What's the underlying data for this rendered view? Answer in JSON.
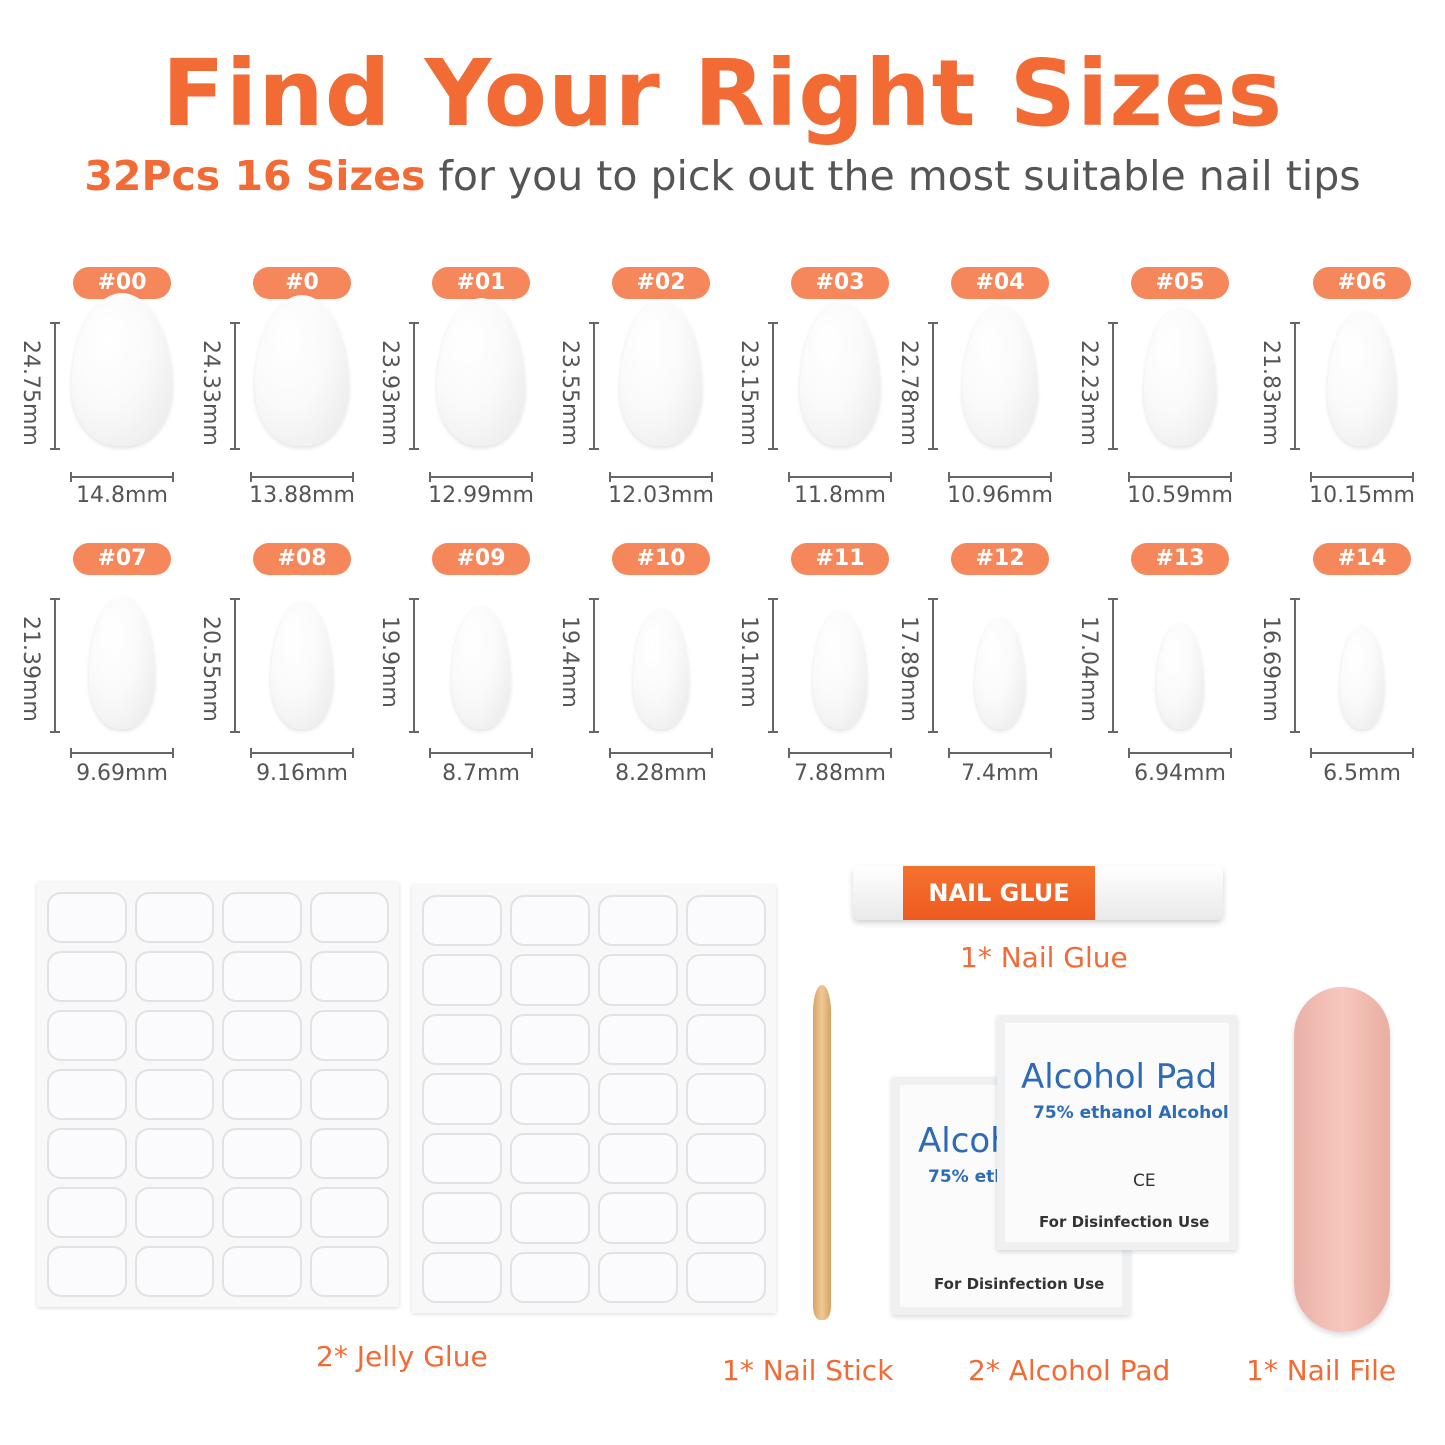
{
  "title": "Find Your Right Sizes",
  "subtitle": {
    "highlight": "32Pcs 16 Sizes",
    "rest": " for you to pick out the most suitable nail tips"
  },
  "accent_color": "#f26a34",
  "sizes": [
    {
      "label": "#00",
      "length": "24.75mm",
      "width": "14.8mm"
    },
    {
      "label": "#0",
      "length": "24.33mm",
      "width": "13.88mm"
    },
    {
      "label": "#01",
      "length": "23.93mm",
      "width": "12.99mm"
    },
    {
      "label": "#02",
      "length": "23.55mm",
      "width": "12.03mm"
    },
    {
      "label": "#03",
      "length": "23.15mm",
      "width": "11.8mm"
    },
    {
      "label": "#04",
      "length": "22.78mm",
      "width": "10.96mm"
    },
    {
      "label": "#05",
      "length": "22.23mm",
      "width": "10.59mm"
    },
    {
      "label": "#06",
      "length": "21.83mm",
      "width": "10.15mm"
    },
    {
      "label": "#07",
      "length": "21.39mm",
      "width": "9.69mm"
    },
    {
      "label": "#08",
      "length": "20.55mm",
      "width": "9.16mm"
    },
    {
      "label": "#09",
      "length": "19.9mm",
      "width": "8.7mm"
    },
    {
      "label": "#10",
      "length": "19.4mm",
      "width": "8.28mm"
    },
    {
      "label": "#11",
      "length": "19.1mm",
      "width": "7.88mm"
    },
    {
      "label": "#12",
      "length": "17.89mm",
      "width": "7.4mm"
    },
    {
      "label": "#13",
      "length": "17.04mm",
      "width": "6.94mm"
    },
    {
      "label": "#14",
      "length": "16.69mm",
      "width": "6.5mm"
    }
  ],
  "accessories": {
    "jelly_glue": "2* Jelly Glue",
    "nail_glue": "1* Nail Glue",
    "nail_glue_label": "NAIL GLUE",
    "nail_stick": "1* Nail Stick",
    "alcohol_pad": "2* Alcohol Pad",
    "nail_file": "1* Nail File",
    "pad_front": {
      "title": "Alcohol Pad",
      "sub": "75% ethanol Alcohol",
      "mark": "CE",
      "use": "For Disinfection Use"
    },
    "pad_back": {
      "title": "Alcoh",
      "sub": "75% etha",
      "use": "For Disinfection Use"
    }
  }
}
